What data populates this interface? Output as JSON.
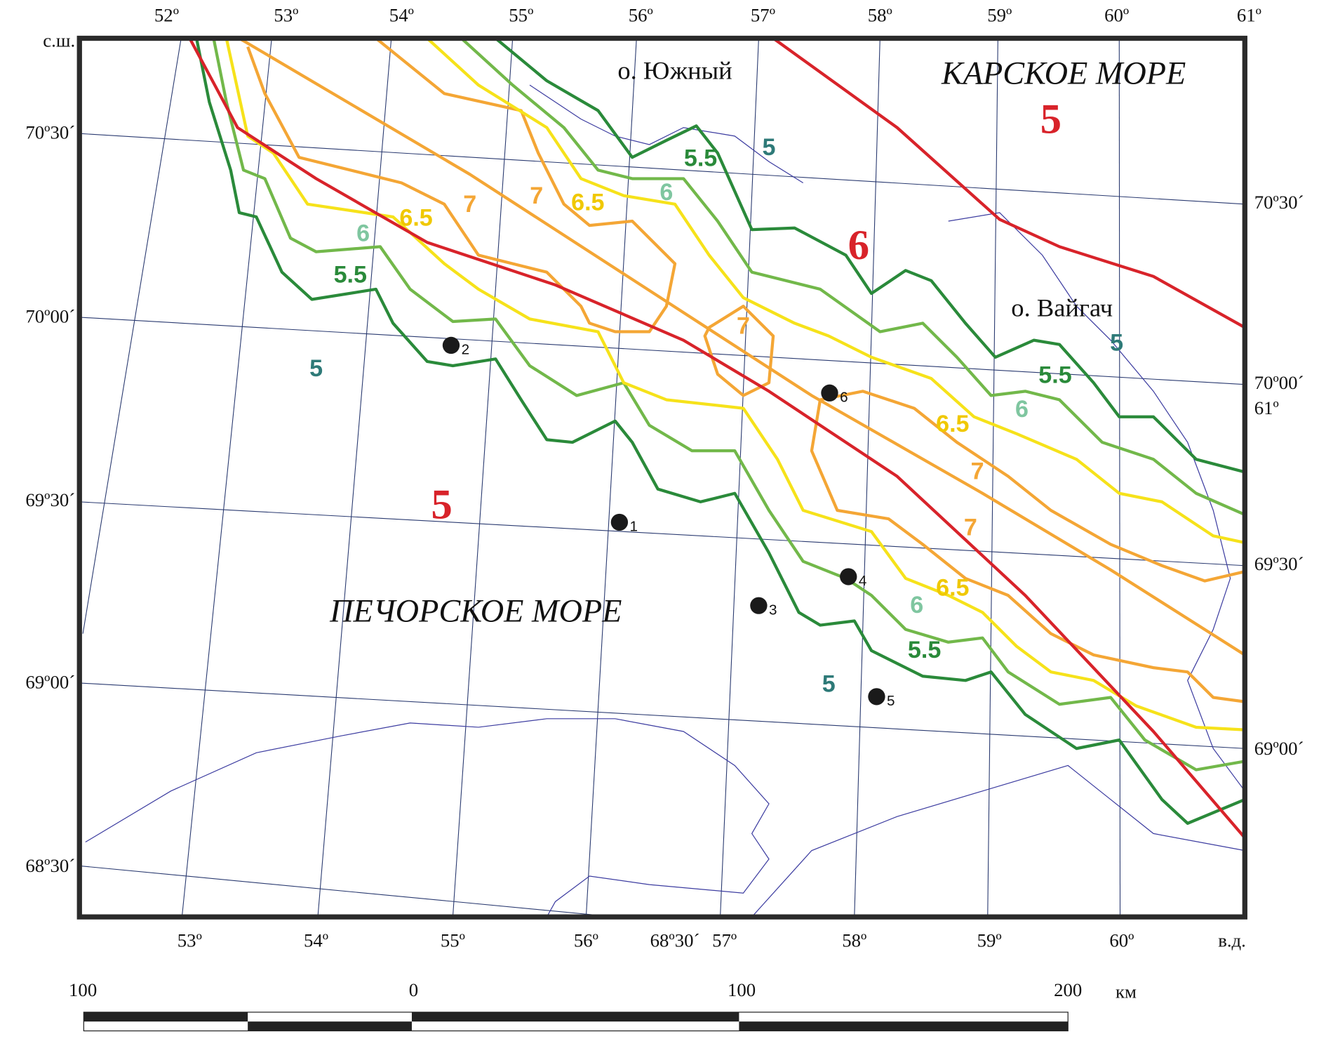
{
  "map": {
    "top_longitudes": [
      "52º",
      "53º",
      "54º",
      "55º",
      "56º",
      "57º",
      "58º",
      "59º",
      "60º",
      "61º"
    ],
    "bottom_longitudes": [
      "53º",
      "54º",
      "55º",
      "56º",
      "68º30´",
      "57º",
      "58º",
      "59º",
      "60º"
    ],
    "corner_label": "в.д.",
    "left_latitudes": [
      "с.ш.",
      "70º30´",
      "70º00´",
      "69º30´",
      "69º00´",
      "68º30´"
    ],
    "right_latitudes": [
      "70º30´",
      "70º00´",
      "61º",
      "69º30´",
      "69º00´"
    ],
    "seas": [
      "КАРСКОЕ МОРЕ",
      "ПЕЧОРСКОЕ МОРЕ"
    ],
    "islands": [
      "о. Южный",
      "о. Вайгач"
    ],
    "zone_labels": [
      "5",
      "5",
      "5.5",
      "6",
      "6.5",
      "7",
      "7",
      "6.5",
      "6",
      "5.5",
      "6",
      "7",
      "5",
      "5",
      "5.5",
      "6",
      "6.5",
      "7",
      "7",
      "5",
      "6.5",
      "6",
      "5.5",
      "5"
    ],
    "stations": [
      "1",
      "2",
      "3",
      "4",
      "5",
      "6"
    ],
    "scale": {
      "labels": [
        "100",
        "0",
        "100",
        "200"
      ],
      "unit": "км"
    }
  }
}
